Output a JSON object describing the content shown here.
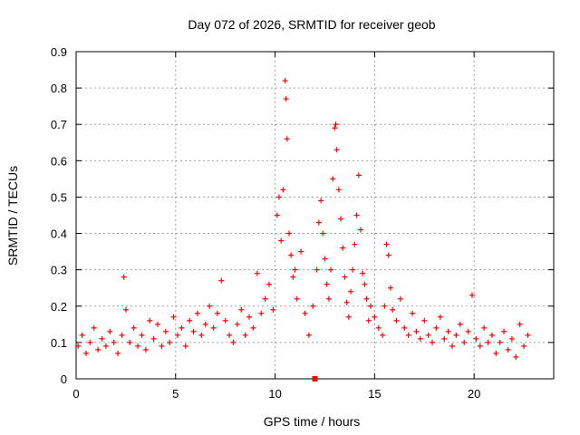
{
  "chart_data": {
    "type": "scatter",
    "title": "Day 072 of 2026, SRMTID for receiver geob",
    "xlabel": "GPS time / hours",
    "ylabel": "SRMTID / TECUs",
    "xlim": [
      0,
      24
    ],
    "ylim": [
      0,
      0.9
    ],
    "xticks": [
      0,
      5,
      10,
      15,
      20
    ],
    "yticks": [
      0,
      0.1,
      0.2,
      0.3,
      0.4,
      0.5,
      0.6,
      0.7,
      0.8,
      0.9
    ],
    "grid": true,
    "marker": "+",
    "color": "#ff0000",
    "series": [
      {
        "name": "SRMTID",
        "points": [
          [
            0.1,
            0.09
          ],
          [
            0.3,
            0.12
          ],
          [
            0.5,
            0.07
          ],
          [
            0.7,
            0.1
          ],
          [
            0.9,
            0.14
          ],
          [
            1.1,
            0.08
          ],
          [
            1.3,
            0.11
          ],
          [
            1.5,
            0.09
          ],
          [
            1.7,
            0.13
          ],
          [
            1.9,
            0.1
          ],
          [
            2.1,
            0.07
          ],
          [
            2.3,
            0.12
          ],
          [
            2.4,
            0.28
          ],
          [
            2.5,
            0.19
          ],
          [
            2.7,
            0.1
          ],
          [
            2.9,
            0.14
          ],
          [
            3.1,
            0.09
          ],
          [
            3.3,
            0.12
          ],
          [
            3.5,
            0.08
          ],
          [
            3.7,
            0.16
          ],
          [
            3.9,
            0.11
          ],
          [
            4.1,
            0.15
          ],
          [
            4.3,
            0.09
          ],
          [
            4.5,
            0.13
          ],
          [
            4.7,
            0.1
          ],
          [
            4.9,
            0.17
          ],
          [
            5.1,
            0.12
          ],
          [
            5.3,
            0.14
          ],
          [
            5.5,
            0.09
          ],
          [
            5.7,
            0.16
          ],
          [
            5.9,
            0.13
          ],
          [
            6.1,
            0.18
          ],
          [
            6.3,
            0.12
          ],
          [
            6.5,
            0.15
          ],
          [
            6.7,
            0.2
          ],
          [
            6.9,
            0.14
          ],
          [
            7.1,
            0.18
          ],
          [
            7.3,
            0.27
          ],
          [
            7.5,
            0.16
          ],
          [
            7.7,
            0.12
          ],
          [
            7.9,
            0.1
          ],
          [
            8.1,
            0.15
          ],
          [
            8.3,
            0.19
          ],
          [
            8.5,
            0.12
          ],
          [
            8.7,
            0.17
          ],
          [
            8.9,
            0.14
          ],
          [
            9.1,
            0.29
          ],
          [
            9.3,
            0.18
          ],
          [
            9.5,
            0.22
          ],
          [
            9.7,
            0.26
          ],
          [
            9.9,
            0.19
          ],
          [
            10.1,
            0.45
          ],
          [
            10.2,
            0.5
          ],
          [
            10.3,
            0.38
          ],
          [
            10.4,
            0.52
          ],
          [
            10.5,
            0.82
          ],
          [
            10.55,
            0.77
          ],
          [
            10.6,
            0.66
          ],
          [
            10.7,
            0.4
          ],
          [
            10.8,
            0.34
          ],
          [
            10.9,
            0.28
          ],
          [
            11.0,
            0.3
          ],
          [
            11.1,
            0.22
          ],
          [
            11.3,
            0.35
          ],
          [
            11.5,
            0.18
          ],
          [
            11.7,
            0.12
          ],
          [
            11.9,
            0.2
          ],
          [
            12.1,
            0.3
          ],
          [
            12.2,
            0.43
          ],
          [
            12.3,
            0.49
          ],
          [
            12.4,
            0.4
          ],
          [
            12.5,
            0.33
          ],
          [
            12.6,
            0.26
          ],
          [
            12.7,
            0.22
          ],
          [
            12.8,
            0.3
          ],
          [
            12.9,
            0.55
          ],
          [
            13.0,
            0.69
          ],
          [
            13.05,
            0.7
          ],
          [
            13.1,
            0.63
          ],
          [
            13.2,
            0.52
          ],
          [
            13.3,
            0.44
          ],
          [
            13.4,
            0.36
          ],
          [
            13.5,
            0.28
          ],
          [
            13.6,
            0.21
          ],
          [
            13.7,
            0.17
          ],
          [
            13.8,
            0.24
          ],
          [
            13.9,
            0.3
          ],
          [
            14.0,
            0.37
          ],
          [
            14.1,
            0.45
          ],
          [
            14.2,
            0.56
          ],
          [
            14.3,
            0.41
          ],
          [
            14.4,
            0.29
          ],
          [
            14.5,
            0.26
          ],
          [
            14.6,
            0.22
          ],
          [
            14.7,
            0.16
          ],
          [
            14.8,
            0.2
          ],
          [
            15.0,
            0.17
          ],
          [
            15.2,
            0.14
          ],
          [
            15.4,
            0.12
          ],
          [
            15.5,
            0.2
          ],
          [
            15.6,
            0.37
          ],
          [
            15.7,
            0.34
          ],
          [
            15.8,
            0.25
          ],
          [
            15.9,
            0.19
          ],
          [
            16.1,
            0.16
          ],
          [
            16.3,
            0.22
          ],
          [
            16.5,
            0.14
          ],
          [
            16.7,
            0.12
          ],
          [
            16.9,
            0.18
          ],
          [
            17.1,
            0.13
          ],
          [
            17.3,
            0.11
          ],
          [
            17.5,
            0.16
          ],
          [
            17.7,
            0.12
          ],
          [
            17.9,
            0.1
          ],
          [
            18.1,
            0.14
          ],
          [
            18.3,
            0.17
          ],
          [
            18.5,
            0.11
          ],
          [
            18.7,
            0.13
          ],
          [
            18.9,
            0.09
          ],
          [
            19.1,
            0.12
          ],
          [
            19.3,
            0.15
          ],
          [
            19.5,
            0.1
          ],
          [
            19.7,
            0.13
          ],
          [
            19.9,
            0.23
          ],
          [
            20.1,
            0.11
          ],
          [
            20.3,
            0.09
          ],
          [
            20.5,
            0.14
          ],
          [
            20.7,
            0.1
          ],
          [
            20.9,
            0.12
          ],
          [
            21.1,
            0.07
          ],
          [
            21.3,
            0.1
          ],
          [
            21.5,
            0.13
          ],
          [
            21.7,
            0.08
          ],
          [
            21.9,
            0.11
          ],
          [
            22.1,
            0.06
          ],
          [
            22.3,
            0.15
          ],
          [
            22.5,
            0.09
          ],
          [
            22.7,
            0.12
          ]
        ]
      }
    ],
    "extra_marker": {
      "x": 12.0,
      "y": 0.0,
      "shape": "square"
    }
  }
}
